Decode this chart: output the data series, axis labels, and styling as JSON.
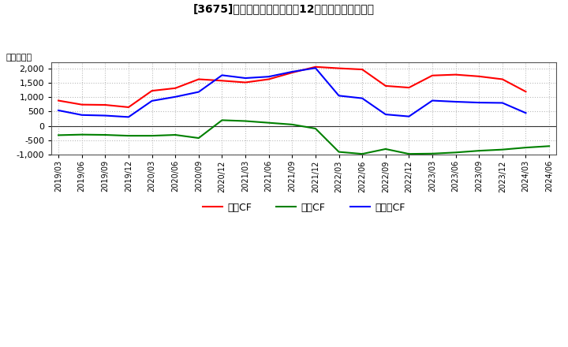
{
  "title": "[3675]　キャッシュフローの12か月移動合計の推移",
  "ylabel": "（百万円）",
  "x_labels": [
    "2019/03",
    "2019/06",
    "2019/09",
    "2019/12",
    "2020/03",
    "2020/06",
    "2020/09",
    "2020/12",
    "2021/03",
    "2021/06",
    "2021/09",
    "2021/12",
    "2022/03",
    "2022/06",
    "2022/09",
    "2022/12",
    "2023/03",
    "2023/06",
    "2023/09",
    "2023/12",
    "2024/03",
    "2024/06"
  ],
  "eigyo_cf": [
    880,
    740,
    730,
    650,
    1220,
    1310,
    1620,
    1570,
    1510,
    1620,
    1850,
    2050,
    2000,
    1960,
    1390,
    1330,
    1750,
    1780,
    1720,
    1620,
    1190,
    null
  ],
  "toshi_cf": [
    -320,
    -300,
    -310,
    -340,
    -340,
    -310,
    -420,
    200,
    170,
    110,
    50,
    -90,
    -900,
    -970,
    -800,
    -970,
    -960,
    -920,
    -860,
    -820,
    -750,
    -700
  ],
  "free_cf": [
    540,
    380,
    360,
    310,
    870,
    1010,
    1180,
    1760,
    1660,
    1710,
    1880,
    2010,
    1050,
    960,
    400,
    330,
    880,
    840,
    810,
    800,
    450,
    null
  ],
  "color_eigyo": "#ff0000",
  "color_toshi": "#008000",
  "color_free": "#0000ff",
  "ylim": [
    -1000,
    2200
  ],
  "yticks": [
    -1000,
    -500,
    0,
    500,
    1000,
    1500,
    2000
  ],
  "legend_eigyo": "営業CF",
  "legend_toshi": "投資CF",
  "legend_free": "フリーCF"
}
